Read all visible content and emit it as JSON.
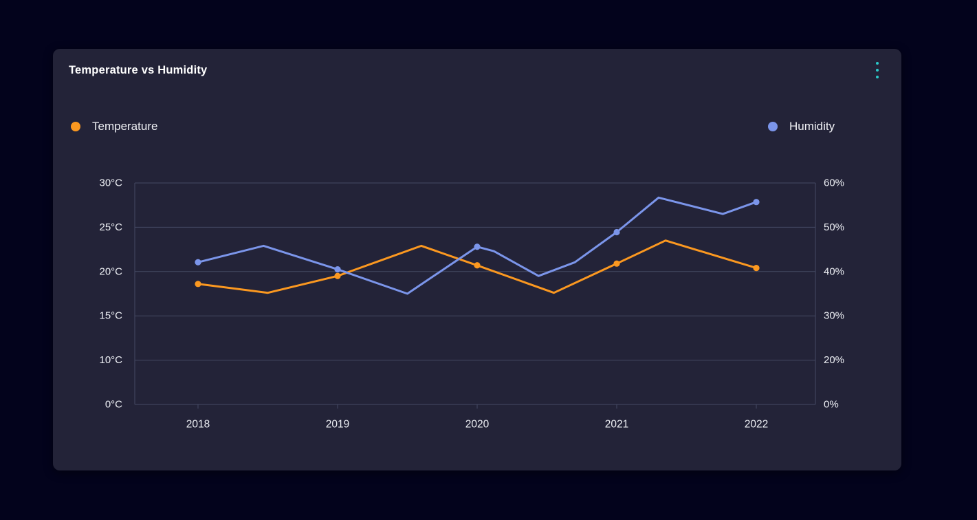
{
  "card": {
    "title": "Temperature vs Humidity"
  },
  "legend": [
    {
      "label": "Temperature",
      "color": "#fb9820"
    },
    {
      "label": "Humidity",
      "color": "#7b95ea"
    }
  ],
  "colors": {
    "page_bg": "#03031c",
    "card_bg": "#232338",
    "gridline": "#454a63",
    "axis_text": "#eef0f5",
    "menu_accent": "#2bc9c9",
    "temperature": "#fb9820",
    "humidity": "#7b95ea"
  },
  "chart_data": {
    "type": "line",
    "title": "Temperature vs Humidity",
    "legend_position": "top",
    "grid": "horizontal-only",
    "axes": {
      "left": {
        "unit": "°C",
        "labels": [
          "30°C",
          "25°C",
          "20°C",
          "15°C",
          "10°C",
          "0°C"
        ],
        "top_value": 30,
        "value_per_gridline": 5
      },
      "right": {
        "unit": "%",
        "labels": [
          "60%",
          "50%",
          "40%",
          "30%",
          "20%",
          "0%"
        ],
        "top_value": 60,
        "value_per_gridline": 10
      },
      "x": {
        "labels": [
          "2018",
          "2019",
          "2020",
          "2021",
          "2022"
        ],
        "start": 2018,
        "end": 2022
      }
    },
    "series": [
      {
        "name": "Temperature",
        "axis": "left",
        "color": "#fb9820",
        "points": [
          [
            2018,
            18.6
          ],
          [
            2018.5,
            17.6
          ],
          [
            2019,
            19.5
          ],
          [
            2019.6,
            22.9
          ],
          [
            2020,
            20.7
          ],
          [
            2020.55,
            17.6
          ],
          [
            2021,
            20.9
          ],
          [
            2021.35,
            23.5
          ],
          [
            2022,
            20.4
          ]
        ]
      },
      {
        "name": "Humidity",
        "axis": "right",
        "color": "#7b95ea",
        "points": [
          [
            2018,
            42.1
          ],
          [
            2018.47,
            45.8
          ],
          [
            2019,
            40.5
          ],
          [
            2019.5,
            35.0
          ],
          [
            2020,
            45.6
          ],
          [
            2020.12,
            44.6
          ],
          [
            2020.44,
            39.0
          ],
          [
            2020.7,
            42.1
          ],
          [
            2021,
            48.9
          ],
          [
            2021.3,
            56.7
          ],
          [
            2021.76,
            53.0
          ],
          [
            2022,
            55.7
          ]
        ]
      }
    ],
    "markers_on_integer_years_only": true
  }
}
